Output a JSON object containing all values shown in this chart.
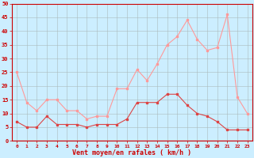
{
  "x": [
    0,
    1,
    2,
    3,
    4,
    5,
    6,
    7,
    8,
    9,
    10,
    11,
    12,
    13,
    14,
    15,
    16,
    17,
    18,
    19,
    20,
    21,
    22,
    23
  ],
  "wind_mean": [
    7,
    5,
    5,
    9,
    6,
    6,
    6,
    5,
    6,
    6,
    6,
    8,
    14,
    14,
    14,
    17,
    17,
    13,
    10,
    9,
    7,
    4,
    4,
    4
  ],
  "wind_gust": [
    25,
    14,
    11,
    15,
    15,
    11,
    11,
    8,
    9,
    9,
    19,
    19,
    26,
    22,
    28,
    35,
    38,
    44,
    37,
    33,
    34,
    46,
    16,
    10
  ],
  "mean_color": "#dd4444",
  "gust_color": "#ff9999",
  "background_color": "#cceeff",
  "grid_color": "#aabbbb",
  "axis_color": "#cc0000",
  "xlabel": "Vent moyen/en rafales ( km/h )",
  "ylim": [
    0,
    50
  ],
  "yticks": [
    0,
    5,
    10,
    15,
    20,
    25,
    30,
    35,
    40,
    45,
    50
  ],
  "ytick_labels": [
    "0",
    "5",
    "10",
    "15",
    "20",
    "25",
    "30",
    "35",
    "40",
    "45",
    "50"
  ],
  "xlim": [
    -0.5,
    23.5
  ]
}
